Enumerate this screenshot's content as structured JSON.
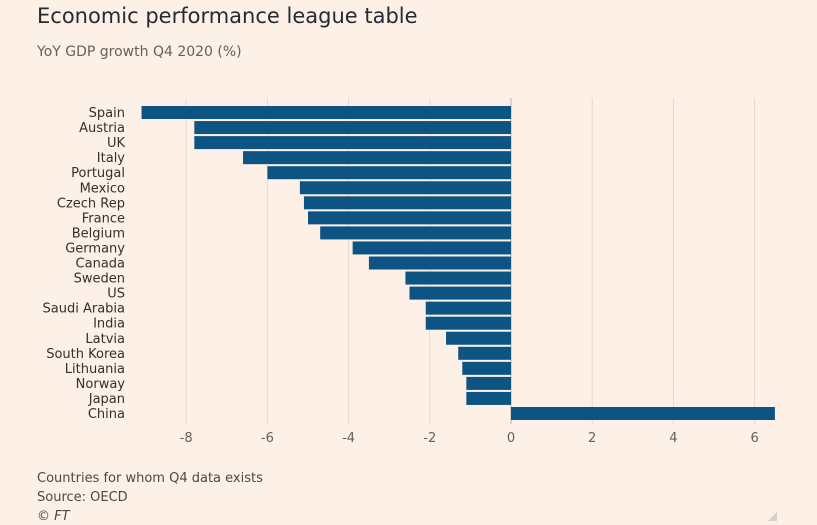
{
  "title": "Economic performance league table",
  "subtitle": "YoY GDP growth Q4 2020 (%)",
  "footer": {
    "note": "Countries for whom Q4 data exists",
    "source": "Source: OECD",
    "copyright": "© FT"
  },
  "colors": {
    "bar": "#0d5484",
    "background": "#fdf0e6",
    "grid": "#e6d9ce"
  },
  "chart_data": {
    "type": "bar",
    "orientation": "horizontal",
    "categories": [
      "Spain",
      "Austria",
      "UK",
      "Italy",
      "Portugal",
      "Mexico",
      "Czech Rep",
      "France",
      "Belgium",
      "Germany",
      "Canada",
      "Sweden",
      "US",
      "Saudi Arabia",
      "India",
      "Latvia",
      "South Korea",
      "Lithuania",
      "Norway",
      "Japan",
      "China"
    ],
    "values": [
      -9.1,
      -7.8,
      -7.8,
      -6.6,
      -6.0,
      -5.2,
      -5.1,
      -5.0,
      -4.7,
      -3.9,
      -3.5,
      -2.6,
      -2.5,
      -2.1,
      -2.1,
      -1.6,
      -1.3,
      -1.2,
      -1.1,
      -1.1,
      6.5
    ],
    "xlim": [
      -9.2,
      6.6
    ],
    "xticks": [
      -8,
      -6,
      -4,
      -2,
      0,
      2,
      4,
      6
    ],
    "xtick_labels": [
      "-8",
      "-6",
      "-4",
      "-2",
      "0",
      "2",
      "4",
      "6"
    ],
    "grid": true
  }
}
